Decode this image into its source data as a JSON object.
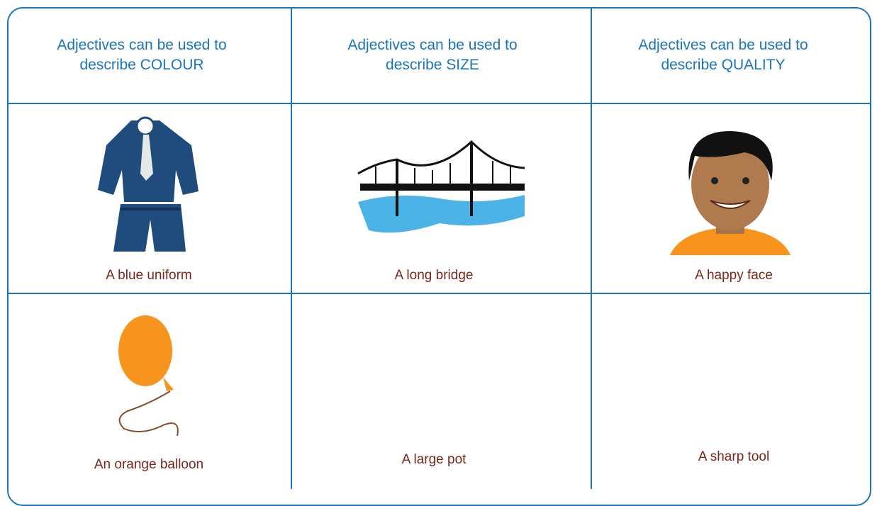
{
  "table": {
    "header": [
      "Adjectives can be used to describe COLOUR",
      "Adjectives can be used to describe SIZE",
      "Adjectives can be used to describe QUALITY"
    ],
    "rows": [
      [
        "A blue uniform",
        "A long bridge",
        "A happy face"
      ],
      [
        "An orange balloon",
        "A large pot",
        "A sharp tool"
      ]
    ]
  }
}
